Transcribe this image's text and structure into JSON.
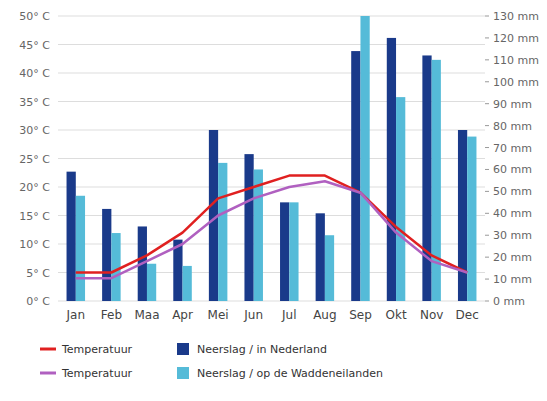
{
  "chart_data": {
    "type": "bar",
    "categories": [
      "Jan",
      "Feb",
      "Maa",
      "Apr",
      "Mei",
      "Jun",
      "Jul",
      "Aug",
      "Sep",
      "Okt",
      "Nov",
      "Dec"
    ],
    "series": [
      {
        "name": "Temperatuur",
        "type": "line",
        "color": "#e02020",
        "values": [
          5,
          5,
          8,
          12,
          18,
          20,
          22,
          22,
          19,
          13,
          8,
          5
        ]
      },
      {
        "name": "Neerslag / in Nederland",
        "type": "bar",
        "axis": "y2",
        "color": "#1a3a8a",
        "values": [
          59,
          42,
          34,
          28,
          78,
          67,
          45,
          40,
          114,
          120,
          112,
          78
        ]
      },
      {
        "name": "Temperatuur",
        "type": "line",
        "color": "#b060c0",
        "values": [
          4,
          4,
          7,
          10,
          15,
          18,
          20,
          21,
          19,
          12,
          7,
          5
        ]
      },
      {
        "name": "Neerslag / op de Waddeneilanden",
        "type": "bar",
        "axis": "y2",
        "color": "#55bbd8",
        "values": [
          48,
          31,
          17,
          16,
          63,
          60,
          45,
          30,
          130,
          93,
          110,
          75
        ]
      }
    ],
    "ylim": [
      0,
      50
    ],
    "yticks": [
      {
        "value": 0,
        "label": "0° C"
      },
      {
        "value": 5,
        "label": "5° C"
      },
      {
        "value": 10,
        "label": "10° C"
      },
      {
        "value": 15,
        "label": "15° C"
      },
      {
        "value": 20,
        "label": "20° C"
      },
      {
        "value": 25,
        "label": "25° C"
      },
      {
        "value": 30,
        "label": "30° C"
      },
      {
        "value": 35,
        "label": "35° C"
      },
      {
        "value": 40,
        "label": "40° C"
      },
      {
        "value": 45,
        "label": "45° C"
      },
      {
        "value": 50,
        "label": "50° C"
      }
    ],
    "y2lim": [
      0,
      130
    ],
    "y2ticks": [
      {
        "value": 0,
        "label": "0 mm"
      },
      {
        "value": 10,
        "label": "10 mm"
      },
      {
        "value": 20,
        "label": "20 mm"
      },
      {
        "value": 30,
        "label": "30 mm"
      },
      {
        "value": 40,
        "label": "40 mm"
      },
      {
        "value": 50,
        "label": "50 mm"
      },
      {
        "value": 60,
        "label": "60 mm"
      },
      {
        "value": 70,
        "label": "70 mm"
      },
      {
        "value": 80,
        "label": "80 mm"
      },
      {
        "value": 90,
        "label": "90 mm"
      },
      {
        "value": 100,
        "label": "100 mm"
      },
      {
        "value": 110,
        "label": "110 mm"
      },
      {
        "value": 120,
        "label": "120 mm"
      },
      {
        "value": 130,
        "label": "130 mm"
      }
    ],
    "grid": true,
    "legend": "lower left"
  }
}
